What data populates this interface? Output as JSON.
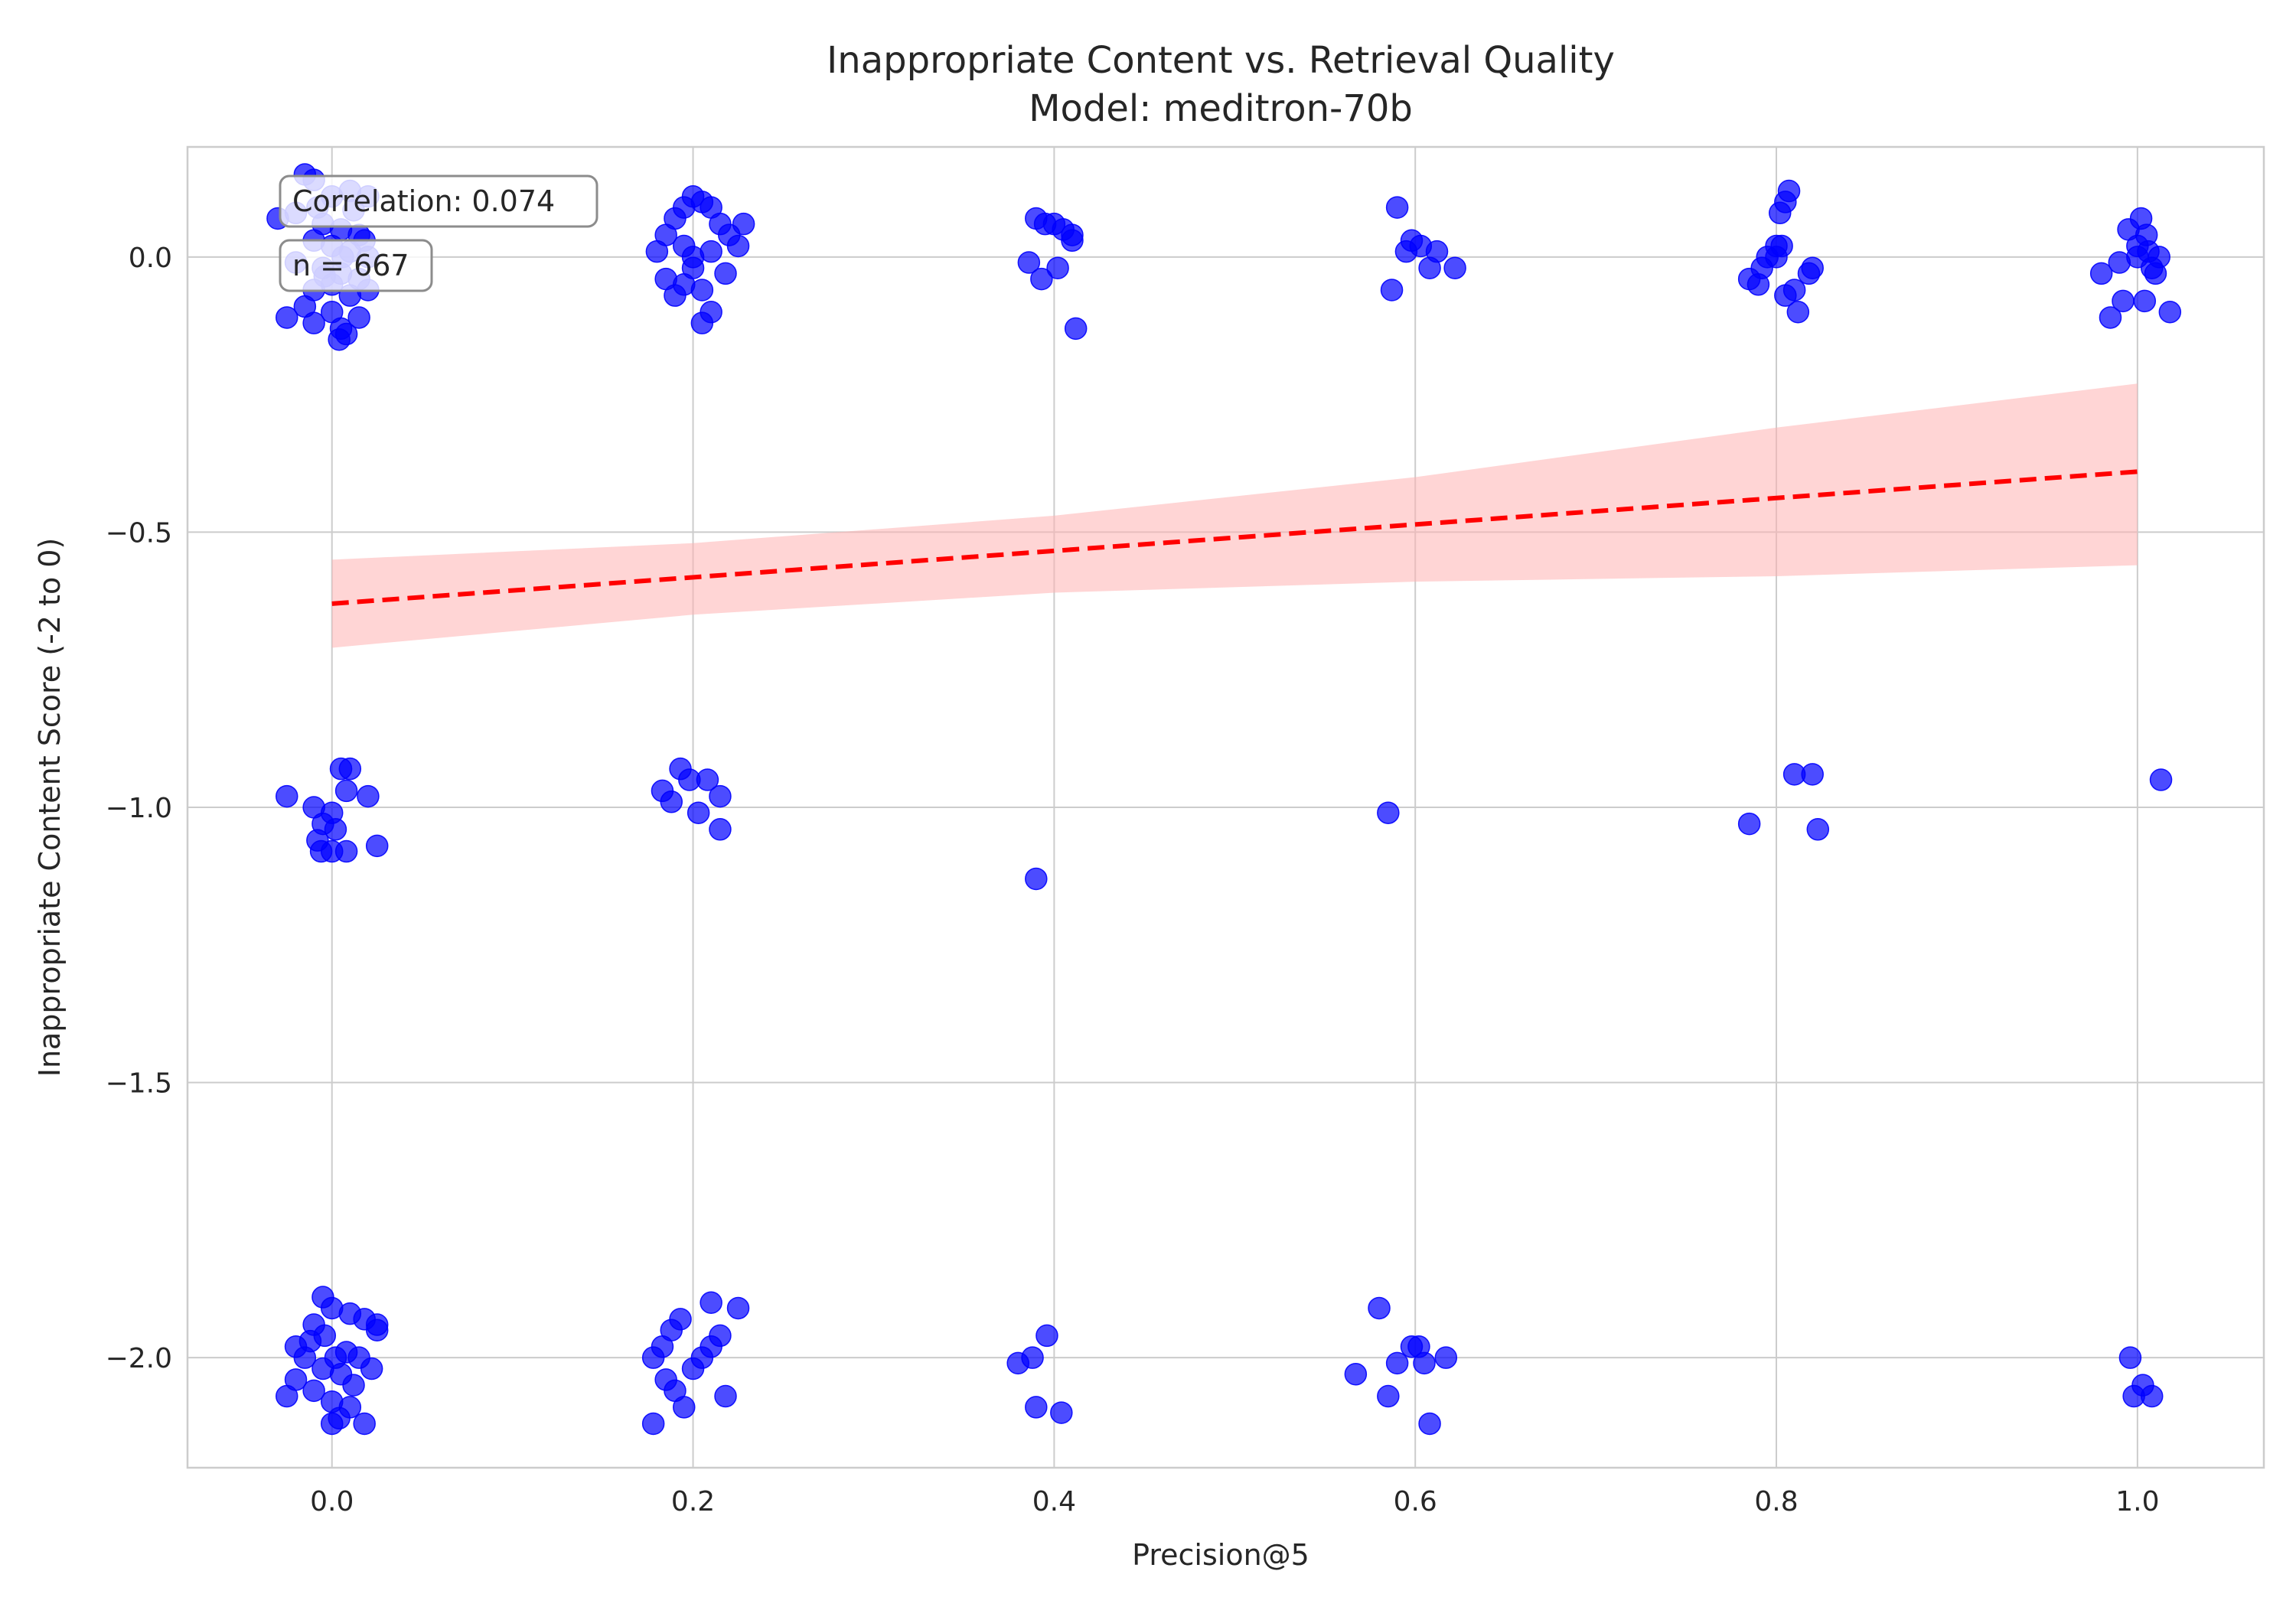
{
  "chart_data": {
    "type": "scatter",
    "title": "Inappropriate Content vs. Retrieval Quality",
    "subtitle": "Model: meditron-70b",
    "xlabel": "Precision@5",
    "ylabel": "Inappropriate Content Score (-2 to 0)",
    "xlim": [
      -0.08,
      1.07
    ],
    "ylim": [
      -2.2,
      0.2
    ],
    "x_ticks": [
      "0.0",
      "0.2",
      "0.4",
      "0.6",
      "0.8",
      "1.0"
    ],
    "x_tick_values": [
      0.0,
      0.2,
      0.4,
      0.6,
      0.8,
      1.0
    ],
    "y_ticks": [
      "0.0",
      "−0.5",
      "−1.0",
      "−1.5",
      "−2.0"
    ],
    "y_tick_values": [
      0.0,
      -0.5,
      -1.0,
      -1.5,
      -2.0
    ],
    "grid": true,
    "colors": {
      "points": "#0000ff",
      "trend": "#ff0000",
      "band": "#ffb3b3",
      "grid": "#cccccc",
      "frame": "#cccccc"
    },
    "annotations": {
      "correlation": "Correlation: 0.074",
      "n": "n = 667"
    },
    "trend": {
      "x0": 0.0,
      "y0": -0.63,
      "x1": 1.0,
      "y1": -0.39
    },
    "band": {
      "x": [
        0.0,
        0.2,
        0.4,
        0.6,
        0.8,
        1.0
      ],
      "lower": [
        -0.71,
        -0.65,
        -0.61,
        -0.59,
        -0.58,
        -0.56
      ],
      "upper": [
        -0.55,
        -0.52,
        -0.47,
        -0.4,
        -0.31,
        -0.23
      ]
    },
    "series": [
      {
        "points": [
          [
            -0.03,
            0.07
          ],
          [
            -0.015,
            0.15
          ],
          [
            -0.01,
            0.14
          ],
          [
            0.0,
            0.11
          ],
          [
            0.01,
            0.12
          ],
          [
            0.02,
            0.11
          ],
          [
            -0.02,
            0.08
          ],
          [
            -0.005,
            0.06
          ],
          [
            0.005,
            0.05
          ],
          [
            0.015,
            0.04
          ],
          [
            -0.01,
            0.03
          ],
          [
            0.0,
            0.02
          ],
          [
            0.01,
            0.01
          ],
          [
            0.02,
            0.0
          ],
          [
            -0.02,
            -0.01
          ],
          [
            -0.005,
            -0.02
          ],
          [
            0.005,
            -0.03
          ],
          [
            0.015,
            -0.04
          ],
          [
            0.0,
            -0.05
          ],
          [
            -0.01,
            -0.06
          ],
          [
            0.01,
            -0.07
          ],
          [
            -0.015,
            -0.09
          ],
          [
            -0.025,
            -0.11
          ],
          [
            -0.01,
            -0.12
          ],
          [
            0.005,
            -0.13
          ],
          [
            0.015,
            -0.11
          ],
          [
            0.0,
            -0.1
          ],
          [
            0.004,
            -0.15
          ],
          [
            0.008,
            -0.14
          ],
          [
            0.02,
            -0.06
          ],
          [
            -0.008,
            0.09
          ],
          [
            0.012,
            0.085
          ],
          [
            0.006,
            0.0
          ],
          [
            -0.004,
            -0.035
          ],
          [
            0.018,
            0.03
          ],
          [
            -0.025,
            -0.98
          ],
          [
            -0.01,
            -1.0
          ],
          [
            0.0,
            -1.01
          ],
          [
            0.005,
            -0.93
          ],
          [
            0.01,
            -0.93
          ],
          [
            0.008,
            -0.97
          ],
          [
            0.02,
            -0.98
          ],
          [
            -0.005,
            -1.03
          ],
          [
            0.002,
            -1.04
          ],
          [
            -0.008,
            -1.06
          ],
          [
            -0.006,
            -1.08
          ],
          [
            0.0,
            -1.08
          ],
          [
            0.008,
            -1.08
          ],
          [
            0.025,
            -1.07
          ],
          [
            -0.025,
            -2.07
          ],
          [
            -0.02,
            -2.04
          ],
          [
            -0.02,
            -1.98
          ],
          [
            -0.01,
            -1.94
          ],
          [
            -0.005,
            -1.89
          ],
          [
            0.0,
            -1.91
          ],
          [
            0.01,
            -1.92
          ],
          [
            0.018,
            -1.93
          ],
          [
            0.025,
            -1.94
          ],
          [
            0.025,
            -1.95
          ],
          [
            -0.015,
            -2.0
          ],
          [
            -0.005,
            -2.02
          ],
          [
            0.005,
            -2.03
          ],
          [
            0.015,
            -2.0
          ],
          [
            0.022,
            -2.02
          ],
          [
            -0.01,
            -2.06
          ],
          [
            0.0,
            -2.08
          ],
          [
            0.01,
            -2.09
          ],
          [
            0.0,
            -2.12
          ],
          [
            0.004,
            -2.11
          ],
          [
            0.018,
            -2.12
          ],
          [
            -0.012,
            -1.97
          ],
          [
            0.008,
            -1.99
          ],
          [
            -0.004,
            -1.96
          ],
          [
            0.012,
            -2.05
          ],
          [
            0.002,
            -2.0
          ],
          [
            0.18,
            0.01
          ],
          [
            0.185,
            0.04
          ],
          [
            0.19,
            0.07
          ],
          [
            0.195,
            0.09
          ],
          [
            0.2,
            0.11
          ],
          [
            0.205,
            0.1
          ],
          [
            0.21,
            0.09
          ],
          [
            0.215,
            0.06
          ],
          [
            0.22,
            0.04
          ],
          [
            0.225,
            0.02
          ],
          [
            0.228,
            0.06
          ],
          [
            0.185,
            -0.04
          ],
          [
            0.19,
            -0.07
          ],
          [
            0.195,
            -0.05
          ],
          [
            0.205,
            -0.06
          ],
          [
            0.21,
            -0.1
          ],
          [
            0.205,
            -0.12
          ],
          [
            0.218,
            -0.03
          ],
          [
            0.2,
            0.0
          ],
          [
            0.195,
            0.02
          ],
          [
            0.21,
            0.01
          ],
          [
            0.2,
            -0.02
          ],
          [
            0.183,
            -0.97
          ],
          [
            0.188,
            -0.99
          ],
          [
            0.193,
            -0.93
          ],
          [
            0.198,
            -0.95
          ],
          [
            0.203,
            -1.01
          ],
          [
            0.208,
            -0.95
          ],
          [
            0.215,
            -0.98
          ],
          [
            0.215,
            -1.04
          ],
          [
            0.178,
            -2.0
          ],
          [
            0.183,
            -1.98
          ],
          [
            0.188,
            -1.95
          ],
          [
            0.193,
            -1.93
          ],
          [
            0.185,
            -2.04
          ],
          [
            0.19,
            -2.06
          ],
          [
            0.195,
            -2.09
          ],
          [
            0.2,
            -2.02
          ],
          [
            0.205,
            -2.0
          ],
          [
            0.21,
            -1.98
          ],
          [
            0.21,
            -1.9
          ],
          [
            0.215,
            -1.96
          ],
          [
            0.218,
            -2.07
          ],
          [
            0.225,
            -1.91
          ],
          [
            0.178,
            -2.12
          ],
          [
            0.386,
            -0.01
          ],
          [
            0.39,
            0.07
          ],
          [
            0.395,
            0.06
          ],
          [
            0.4,
            0.06
          ],
          [
            0.405,
            0.05
          ],
          [
            0.41,
            0.03
          ],
          [
            0.393,
            -0.04
          ],
          [
            0.402,
            -0.02
          ],
          [
            0.412,
            -0.13
          ],
          [
            0.41,
            0.04
          ],
          [
            0.39,
            -1.13
          ],
          [
            0.38,
            -2.01
          ],
          [
            0.388,
            -2.0
          ],
          [
            0.396,
            -1.96
          ],
          [
            0.39,
            -2.09
          ],
          [
            0.404,
            -2.1
          ],
          [
            0.587,
            -0.06
          ],
          [
            0.59,
            0.09
          ],
          [
            0.595,
            0.01
          ],
          [
            0.598,
            0.03
          ],
          [
            0.603,
            0.02
          ],
          [
            0.608,
            -0.02
          ],
          [
            0.612,
            0.01
          ],
          [
            0.622,
            -0.02
          ],
          [
            0.585,
            -1.01
          ],
          [
            0.567,
            -2.03
          ],
          [
            0.58,
            -1.91
          ],
          [
            0.585,
            -2.07
          ],
          [
            0.59,
            -2.01
          ],
          [
            0.598,
            -1.98
          ],
          [
            0.602,
            -1.98
          ],
          [
            0.605,
            -2.01
          ],
          [
            0.608,
            -2.12
          ],
          [
            0.617,
            -2.0
          ],
          [
            0.785,
            -0.04
          ],
          [
            0.79,
            -0.05
          ],
          [
            0.792,
            -0.02
          ],
          [
            0.795,
            0.0
          ],
          [
            0.8,
            0.02
          ],
          [
            0.802,
            0.08
          ],
          [
            0.805,
            0.1
          ],
          [
            0.807,
            0.12
          ],
          [
            0.805,
            -0.07
          ],
          [
            0.81,
            -0.06
          ],
          [
            0.812,
            -0.1
          ],
          [
            0.818,
            -0.03
          ],
          [
            0.82,
            -0.02
          ],
          [
            0.8,
            0.0
          ],
          [
            0.803,
            0.02
          ],
          [
            0.785,
            -1.03
          ],
          [
            0.81,
            -0.94
          ],
          [
            0.82,
            -0.94
          ],
          [
            0.823,
            -1.04
          ],
          [
            0.985,
            -0.11
          ],
          [
            0.99,
            -0.01
          ],
          [
            0.992,
            -0.08
          ],
          [
            0.995,
            0.05
          ],
          [
            1.0,
            0.02
          ],
          [
            1.002,
            0.07
          ],
          [
            1.005,
            0.04
          ],
          [
            1.008,
            -0.02
          ],
          [
            1.01,
            -0.03
          ],
          [
            1.012,
            0.0
          ],
          [
            1.004,
            -0.08
          ],
          [
            1.018,
            -0.1
          ],
          [
            0.98,
            -0.03
          ],
          [
            1.0,
            0.0
          ],
          [
            1.006,
            0.01
          ],
          [
            1.013,
            -0.95
          ],
          [
            0.996,
            -2.0
          ],
          [
            0.998,
            -2.07
          ],
          [
            1.003,
            -2.05
          ],
          [
            1.008,
            -2.07
          ]
        ]
      }
    ]
  }
}
